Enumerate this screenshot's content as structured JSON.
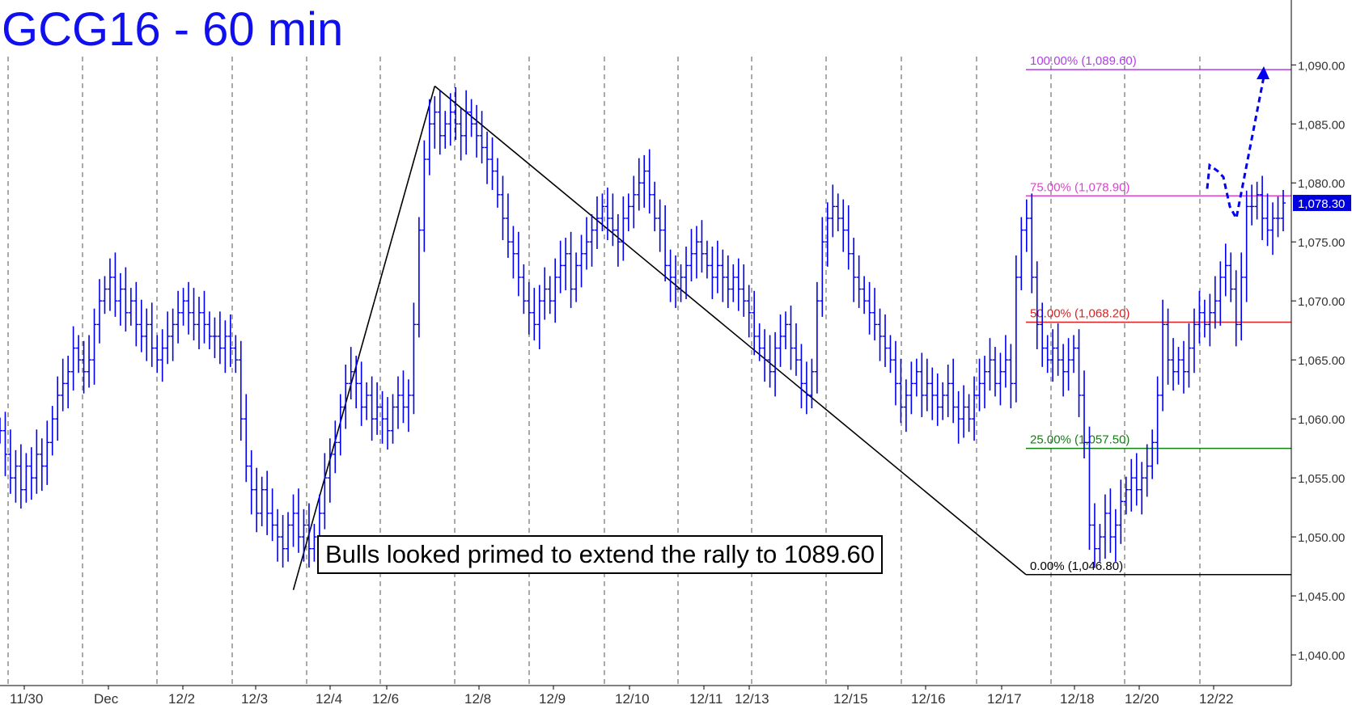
{
  "chart_data": {
    "type": "line",
    "title": "GCG16 - 60 min",
    "x_tick_labels": [
      "11/30",
      "Dec",
      "12/2",
      "12/3",
      "12/4",
      "12/6",
      "12/8",
      "12/9",
      "12/10",
      "12/11",
      "12/13",
      "12/15",
      "12/16",
      "12/17",
      "12/18",
      "12/20",
      "12/22"
    ],
    "y_ticks": [
      1040,
      1045,
      1050,
      1055,
      1060,
      1065,
      1070,
      1075,
      1080,
      1085,
      1090
    ],
    "y_tick_labels": [
      "1,040.00",
      "1,045.00",
      "1,050.00",
      "1,055.00",
      "1,060.00",
      "1,065.00",
      "1,070.00",
      "1,075.00",
      "1,080.00",
      "1,085.00",
      "1,090.00"
    ],
    "ylim": [
      1037.4,
      1095.5
    ],
    "last_price": 1078.3,
    "last_price_label": "1,078.30",
    "series": [
      {
        "values": [
          1059,
          1057,
          1055,
          1056,
          1054,
          1056,
          1055,
          1057,
          1056,
          1058,
          1060,
          1062,
          1063,
          1064,
          1066,
          1065,
          1064,
          1065,
          1068,
          1070,
          1071,
          1072,
          1070,
          1071,
          1069,
          1070,
          1068,
          1067,
          1068,
          1066,
          1065,
          1066,
          1067,
          1068,
          1069,
          1070,
          1069,
          1068,
          1069,
          1068,
          1067,
          1067,
          1066,
          1067,
          1066,
          1065,
          1060,
          1056,
          1054,
          1052,
          1054,
          1052,
          1051,
          1050,
          1049,
          1051,
          1052,
          1050,
          1051,
          1049,
          1050,
          1052,
          1055,
          1057,
          1058,
          1061,
          1063,
          1064,
          1063,
          1061,
          1062,
          1060,
          1061,
          1060,
          1059,
          1061,
          1062,
          1061,
          1062,
          1068,
          1076,
          1082,
          1085,
          1086,
          1084,
          1085,
          1086,
          1085,
          1084,
          1086,
          1085,
          1084,
          1083,
          1082,
          1081,
          1079,
          1077,
          1075,
          1074,
          1072,
          1070,
          1069,
          1068,
          1070,
          1071,
          1070,
          1072,
          1073,
          1074,
          1071,
          1073,
          1074,
          1075,
          1076,
          1077,
          1078,
          1077,
          1076,
          1075,
          1077,
          1078,
          1079,
          1080,
          1081,
          1079,
          1077,
          1076,
          1073,
          1072,
          1071,
          1072,
          1073,
          1074,
          1075,
          1074,
          1073,
          1072,
          1073,
          1072,
          1071,
          1072,
          1071,
          1070,
          1069,
          1067,
          1066,
          1065,
          1064,
          1066,
          1067,
          1068,
          1066,
          1065,
          1063,
          1062,
          1064,
          1070,
          1075,
          1077,
          1078,
          1077,
          1076,
          1074,
          1072,
          1071,
          1070,
          1069,
          1068,
          1067,
          1066,
          1065,
          1063,
          1061,
          1062,
          1063,
          1064,
          1062,
          1063,
          1062,
          1061,
          1062,
          1063,
          1061,
          1060,
          1061,
          1060,
          1062,
          1063,
          1064,
          1065,
          1063,
          1064,
          1065,
          1063,
          1072,
          1076,
          1077,
          1072,
          1068,
          1066,
          1065,
          1066,
          1065,
          1064,
          1065,
          1066,
          1062,
          1058,
          1051,
          1049,
          1050,
          1052,
          1050,
          1051,
          1053,
          1054,
          1055,
          1054,
          1055,
          1056,
          1058,
          1062,
          1068,
          1065,
          1064,
          1065,
          1064,
          1066,
          1068,
          1069,
          1068,
          1069,
          1070,
          1072,
          1073,
          1071,
          1068,
          1072,
          1078,
          1078,
          1079,
          1077,
          1076,
          1077,
          1077,
          1078.3
        ]
      }
    ],
    "fib_levels": [
      {
        "label": "100.00% (1,089.60)",
        "value": 1089.6,
        "color": "#b040e0"
      },
      {
        "label": "75.00% (1,078.90)",
        "value": 1078.9,
        "color": "#e040d0"
      },
      {
        "label": "50.00% (1,068.20)",
        "value": 1068.2,
        "color": "#e02020"
      },
      {
        "label": "25.00% (1,057.50)",
        "value": 1057.5,
        "color": "#108010"
      },
      {
        "label": "0.00% (1,046.80)",
        "value": 1046.8,
        "color": "#000000"
      }
    ],
    "annotation": "Bulls looked primed to extend the rally to 1089.60",
    "colors": {
      "price": "#0000ee",
      "title": "#1010ee",
      "trendline": "#000000",
      "projection": "#0000ee",
      "grid": "#555555"
    }
  }
}
